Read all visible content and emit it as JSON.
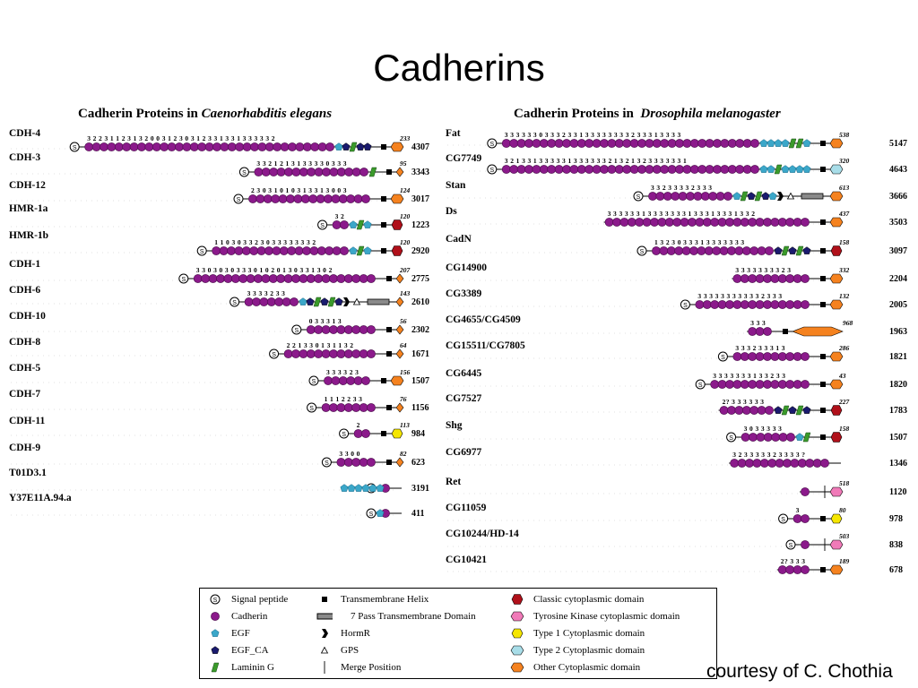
{
  "title": "Cadherins",
  "credit": "courtesy of C. Chothia",
  "panels": [
    {
      "title_prefix": "Cadherin Proteins in",
      "title_species": "Caenorhabditis elegans",
      "proteins": [
        {
          "name": "CDH-4",
          "length": "4307",
          "ctail": "233",
          "signal": true,
          "cad_digits": "3 2 2 3 1 1 2 3 1 3 2 0 0 3 1 2 3 0 3 1 2 3 3 1 3 3 1 3 3 3 3 3 2",
          "cadherin_repeats": 33,
          "extra": [
            "egf",
            "egfca",
            "lam",
            "egfca",
            "egfca"
          ],
          "tm": "helix",
          "cyto": "other"
        },
        {
          "name": "CDH-3",
          "length": "3343",
          "ctail": "95",
          "signal": true,
          "cad_digits": "3 3 2 1 2 1 3   1 3   3 3 3 0 3 3 3",
          "cadherin_repeats": 15,
          "extra": [
            "lam"
          ],
          "tm": "helix",
          "cyto": "other-small"
        },
        {
          "name": "CDH-12",
          "length": "3017",
          "ctail": "124",
          "signal": true,
          "cad_digits": "2   3   0 3 1 0 1 0 3 1 3 3 1   3 0 0 3",
          "cadherin_repeats": 16,
          "extra": [],
          "tm": "helix",
          "cyto": "other"
        },
        {
          "name": "HMR-1a",
          "length": "1223",
          "ctail": "120",
          "signal": true,
          "cad_digits": "3 2",
          "cadherin_repeats": 2,
          "extra": [
            "egf",
            "lam",
            "egf"
          ],
          "tm": "helix",
          "cyto": "classic"
        },
        {
          "name": "HMR-1b",
          "length": "2920",
          "ctail": "120",
          "signal": true,
          "cad_digits": "1 1 0 3 0 3 3 2 3 0 3 3 3 3 3 3 3 2",
          "cadherin_repeats": 18,
          "extra": [
            "egf",
            "lam",
            "egf"
          ],
          "tm": "helix",
          "cyto": "classic"
        },
        {
          "name": "CDH-1",
          "length": "2775",
          "ctail": "207",
          "signal": true,
          "cad_digits": "3 3 0 3 0 3 0 3 3 3 0 1 0 2 0 1 3 0 3 3 1 3 0 2",
          "cadherin_repeats": 24,
          "extra": [],
          "tm": "helix",
          "cyto": "other-small"
        },
        {
          "name": "CDH-6",
          "length": "2610",
          "ctail": "143",
          "signal": true,
          "cad_digits": "3 3 3 3 2 3 3",
          "cadherin_repeats": 7,
          "extra": [
            "egf",
            "egfca",
            "lam",
            "egfca",
            "lam",
            "egfca",
            "hormr"
          ],
          "gps": true,
          "tm": "7pass",
          "cyto": "other-small"
        },
        {
          "name": "CDH-10",
          "length": "2302",
          "ctail": "56",
          "signal": true,
          "cad_digits": "0   3   3 3 1   3",
          "cadherin_repeats": 9,
          "extra": [],
          "tm": "helix",
          "cyto": "other-small"
        },
        {
          "name": "CDH-8",
          "length": "1671",
          "ctail": "64",
          "signal": true,
          "cad_digits": "2 2 1 3 3 0 1 3 1 1 3 2",
          "cadherin_repeats": 12,
          "extra": [],
          "tm": "helix",
          "cyto": "other-small"
        },
        {
          "name": "CDH-5",
          "length": "1507",
          "ctail": "156",
          "signal": true,
          "cad_digits": "3 3 3   3 2 3",
          "cadherin_repeats": 6,
          "extra": [],
          "tm": "helix",
          "cyto": "other"
        },
        {
          "name": "CDH-7",
          "length": "1156",
          "ctail": "76",
          "signal": true,
          "cad_digits": "1 1 1 2 2 3 3",
          "cadherin_repeats": 7,
          "extra": [],
          "tm": "helix",
          "cyto": "other-small"
        },
        {
          "name": "CDH-11",
          "length": "984",
          "ctail": "113",
          "signal": true,
          "cad_digits": "2",
          "cadherin_repeats": 2,
          "extra": [],
          "tm": "helix",
          "cyto": "type1"
        },
        {
          "name": "CDH-9",
          "length": "623",
          "ctail": "82",
          "signal": true,
          "cad_digits": "3 3 0 0",
          "cadherin_repeats": 5,
          "extra": [],
          "tm": "helix",
          "cyto": "other-small"
        },
        {
          "name": "T01D3.1",
          "length": "3191",
          "ctail": "",
          "signal": true,
          "cad_digits": "",
          "cadherin_repeats": 1,
          "extra": [
            "egf",
            "egf",
            "egf",
            "egf",
            "egf",
            "egf"
          ],
          "tm": "none",
          "cyto": "none"
        },
        {
          "name": "Y37E11A.94.a",
          "length": "411",
          "ctail": "",
          "signal": true,
          "cad_digits": "",
          "cadherin_repeats": 1,
          "extra": [
            "egf"
          ],
          "tm": "none",
          "cyto": "none"
        }
      ]
    },
    {
      "title_prefix": "Cadherin Proteins in",
      "title_species": "Drosophila melanogaster",
      "proteins": [
        {
          "name": "Fat",
          "length": "5147",
          "ctail": "538",
          "signal": true,
          "cad_digits": "3 3 3 3 3 3 0 3 3 3 2 3 3 1 3 3 3 3 3 3 3 3 2 3 3 3 1 3 3 3 3",
          "cadherin_repeats": 34,
          "extra": [
            "egf",
            "egf",
            "egf",
            "egf",
            "lam",
            "lam",
            "egf"
          ],
          "tm": "helix",
          "cyto": "other"
        },
        {
          "name": "CG7749",
          "length": "4643",
          "ctail": "320",
          "signal": true,
          "cad_digits": "3 2 1 3 3 1 3 3 3 3 3 1 3 3 3 3 3 3 2 1 3 2 1 3 2 3 3 3 3 3 3 1",
          "cadherin_repeats": 34,
          "extra": [
            "egf",
            "egf",
            "lam",
            "egf",
            "egf",
            "egf",
            "egf"
          ],
          "tm": "helix",
          "cyto": "type2"
        },
        {
          "name": "Stan",
          "length": "3666",
          "ctail": "613",
          "signal": true,
          "cad_digits": "3 3 2 3 3 3 3 2 3 3 3",
          "cadherin_repeats": 11,
          "extra": [
            "egf",
            "lam",
            "egfca",
            "lam",
            "egfca",
            "egf",
            "hormr"
          ],
          "gps": true,
          "tm": "7pass",
          "cyto": "other"
        },
        {
          "name": "Ds",
          "length": "3503",
          "ctail": "437",
          "signal": false,
          "cad_digits": "3 3 3 3 3 3 1 3 3 3 3 3 3 3 1 3 3 3 1 3 3 3 1 3 3 2",
          "cadherin_repeats": 27,
          "extra": [],
          "tm": "helix",
          "cyto": "other"
        },
        {
          "name": "CadN",
          "length": "3097",
          "ctail": "158",
          "signal": true,
          "cad_digits": "1 3 2 3 0 3 3 3 1 3 3 3 3 3 3 3",
          "cadherin_repeats": 16,
          "extra": [
            "egfca",
            "lam",
            "egfca",
            "lam",
            "egfca"
          ],
          "tm": "helix",
          "cyto": "classic"
        },
        {
          "name": "CG14900",
          "length": "2204",
          "ctail": "332",
          "signal": false,
          "cad_digits": "3 3 3 3   3 3 3 3 2 3",
          "cadherin_repeats": 10,
          "extra": [],
          "tm": "helix",
          "cyto": "other"
        },
        {
          "name": "CG3389",
          "length": "2005",
          "ctail": "132",
          "signal": true,
          "cad_digits": "3 3 3 3 3 3 3 3 3 3 3 2 3 3 3",
          "cadherin_repeats": 15,
          "extra": [],
          "tm": "helix",
          "cyto": "other"
        },
        {
          "name": "CG4655/CG4509",
          "length": "1963",
          "ctail": "968",
          "signal": false,
          "cad_digits": "3   3 3",
          "cadherin_repeats": 3,
          "extra": [],
          "tm": "helix",
          "cyto": "other-long"
        },
        {
          "name": "CG15511/CG7805",
          "length": "1821",
          "ctail": "286",
          "signal": true,
          "cad_digits": "3   3 3 2 3 3 3 1 3",
          "cadherin_repeats": 10,
          "extra": [],
          "tm": "helix",
          "cyto": "other"
        },
        {
          "name": "CG6445",
          "length": "1820",
          "ctail": "43",
          "signal": true,
          "cad_digits": "3 3 3 3 3 3 3 1 3 3 2 3 3",
          "cadherin_repeats": 13,
          "extra": [],
          "tm": "helix",
          "cyto": "other"
        },
        {
          "name": "CG7527",
          "length": "1783",
          "ctail": "227",
          "signal": false,
          "cad_digits": "2? 3 3 3 3 3 3",
          "cadherin_repeats": 7,
          "extra": [
            "egfca",
            "lam",
            "egfca",
            "lam",
            "egfca"
          ],
          "tm": "helix",
          "cyto": "classic"
        },
        {
          "name": "Shg",
          "length": "1507",
          "ctail": "158",
          "signal": true,
          "cad_digits": "3 0 3 3 3 3 3",
          "cadherin_repeats": 7,
          "extra": [
            "egf",
            "lam"
          ],
          "tm": "helix",
          "cyto": "classic"
        },
        {
          "name": "CG6977",
          "length": "1346",
          "ctail": "",
          "signal": false,
          "cad_digits": "3 2 3 3 3 3 3 2 3 3 3 3 ?",
          "cadherin_repeats": 13,
          "extra": [],
          "tm": "none",
          "cyto": "none"
        },
        {
          "name": "Ret",
          "length": "1120",
          "ctail": "518",
          "signal": false,
          "cad_digits": "",
          "cadherin_repeats": 1,
          "extra": [],
          "tm": "merge",
          "cyto": "tyrosine"
        },
        {
          "name": "CG11059",
          "length": "978",
          "ctail": "80",
          "signal": true,
          "cad_digits": "3",
          "cadherin_repeats": 2,
          "extra": [],
          "tm": "helix",
          "cyto": "type1"
        },
        {
          "name": "CG10244/HD-14",
          "length": "838",
          "ctail": "503",
          "signal": true,
          "cad_digits": "",
          "cadherin_repeats": 1,
          "extra": [],
          "tm": "merge",
          "cyto": "tyrosine"
        },
        {
          "name": "CG10421",
          "length": "678",
          "ctail": "189",
          "signal": false,
          "cad_digits": "2? 3 3 3",
          "cadherin_repeats": 4,
          "extra": [],
          "tm": "helix",
          "cyto": "other"
        }
      ]
    }
  ],
  "legend": [
    {
      "symbol": "signal",
      "label": "Signal peptide"
    },
    {
      "symbol": "cadherin",
      "label": "Cadherin"
    },
    {
      "symbol": "egf",
      "label": "EGF"
    },
    {
      "symbol": "egfca",
      "label": "EGF_CA"
    },
    {
      "symbol": "lam",
      "label": "Laminin G"
    },
    {
      "symbol": "helix",
      "label": "Transmembrane Helix"
    },
    {
      "symbol": "7pass",
      "label": "7 Pass Transmembrane Domain"
    },
    {
      "symbol": "hormr",
      "label": "HormR"
    },
    {
      "symbol": "gps",
      "label": "GPS"
    },
    {
      "symbol": "merge",
      "label": "Merge Position"
    },
    {
      "symbol": "classic",
      "label": "Classic cytoplasmic domain"
    },
    {
      "symbol": "tyrosine",
      "label": "Tyrosine Kinase cytoplasmic domain"
    },
    {
      "symbol": "type1",
      "label": "Type 1 Cytoplasmic domain"
    },
    {
      "symbol": "type2",
      "label": "Type 2 Cytoplasmic domain"
    },
    {
      "symbol": "other",
      "label": "Other Cytoplasmic domain"
    }
  ],
  "colors": {
    "cadherin": "#8b1a8b",
    "egf": "#3ba7c9",
    "egfca": "#1a1a6e",
    "laminin": "#3a9a2a",
    "classic": "#b0101a",
    "tyrosine": "#f07ab8",
    "type1": "#f5e600",
    "type2": "#a8dde8",
    "other": "#f5821f",
    "seven_pass": "#8a8a8a"
  }
}
